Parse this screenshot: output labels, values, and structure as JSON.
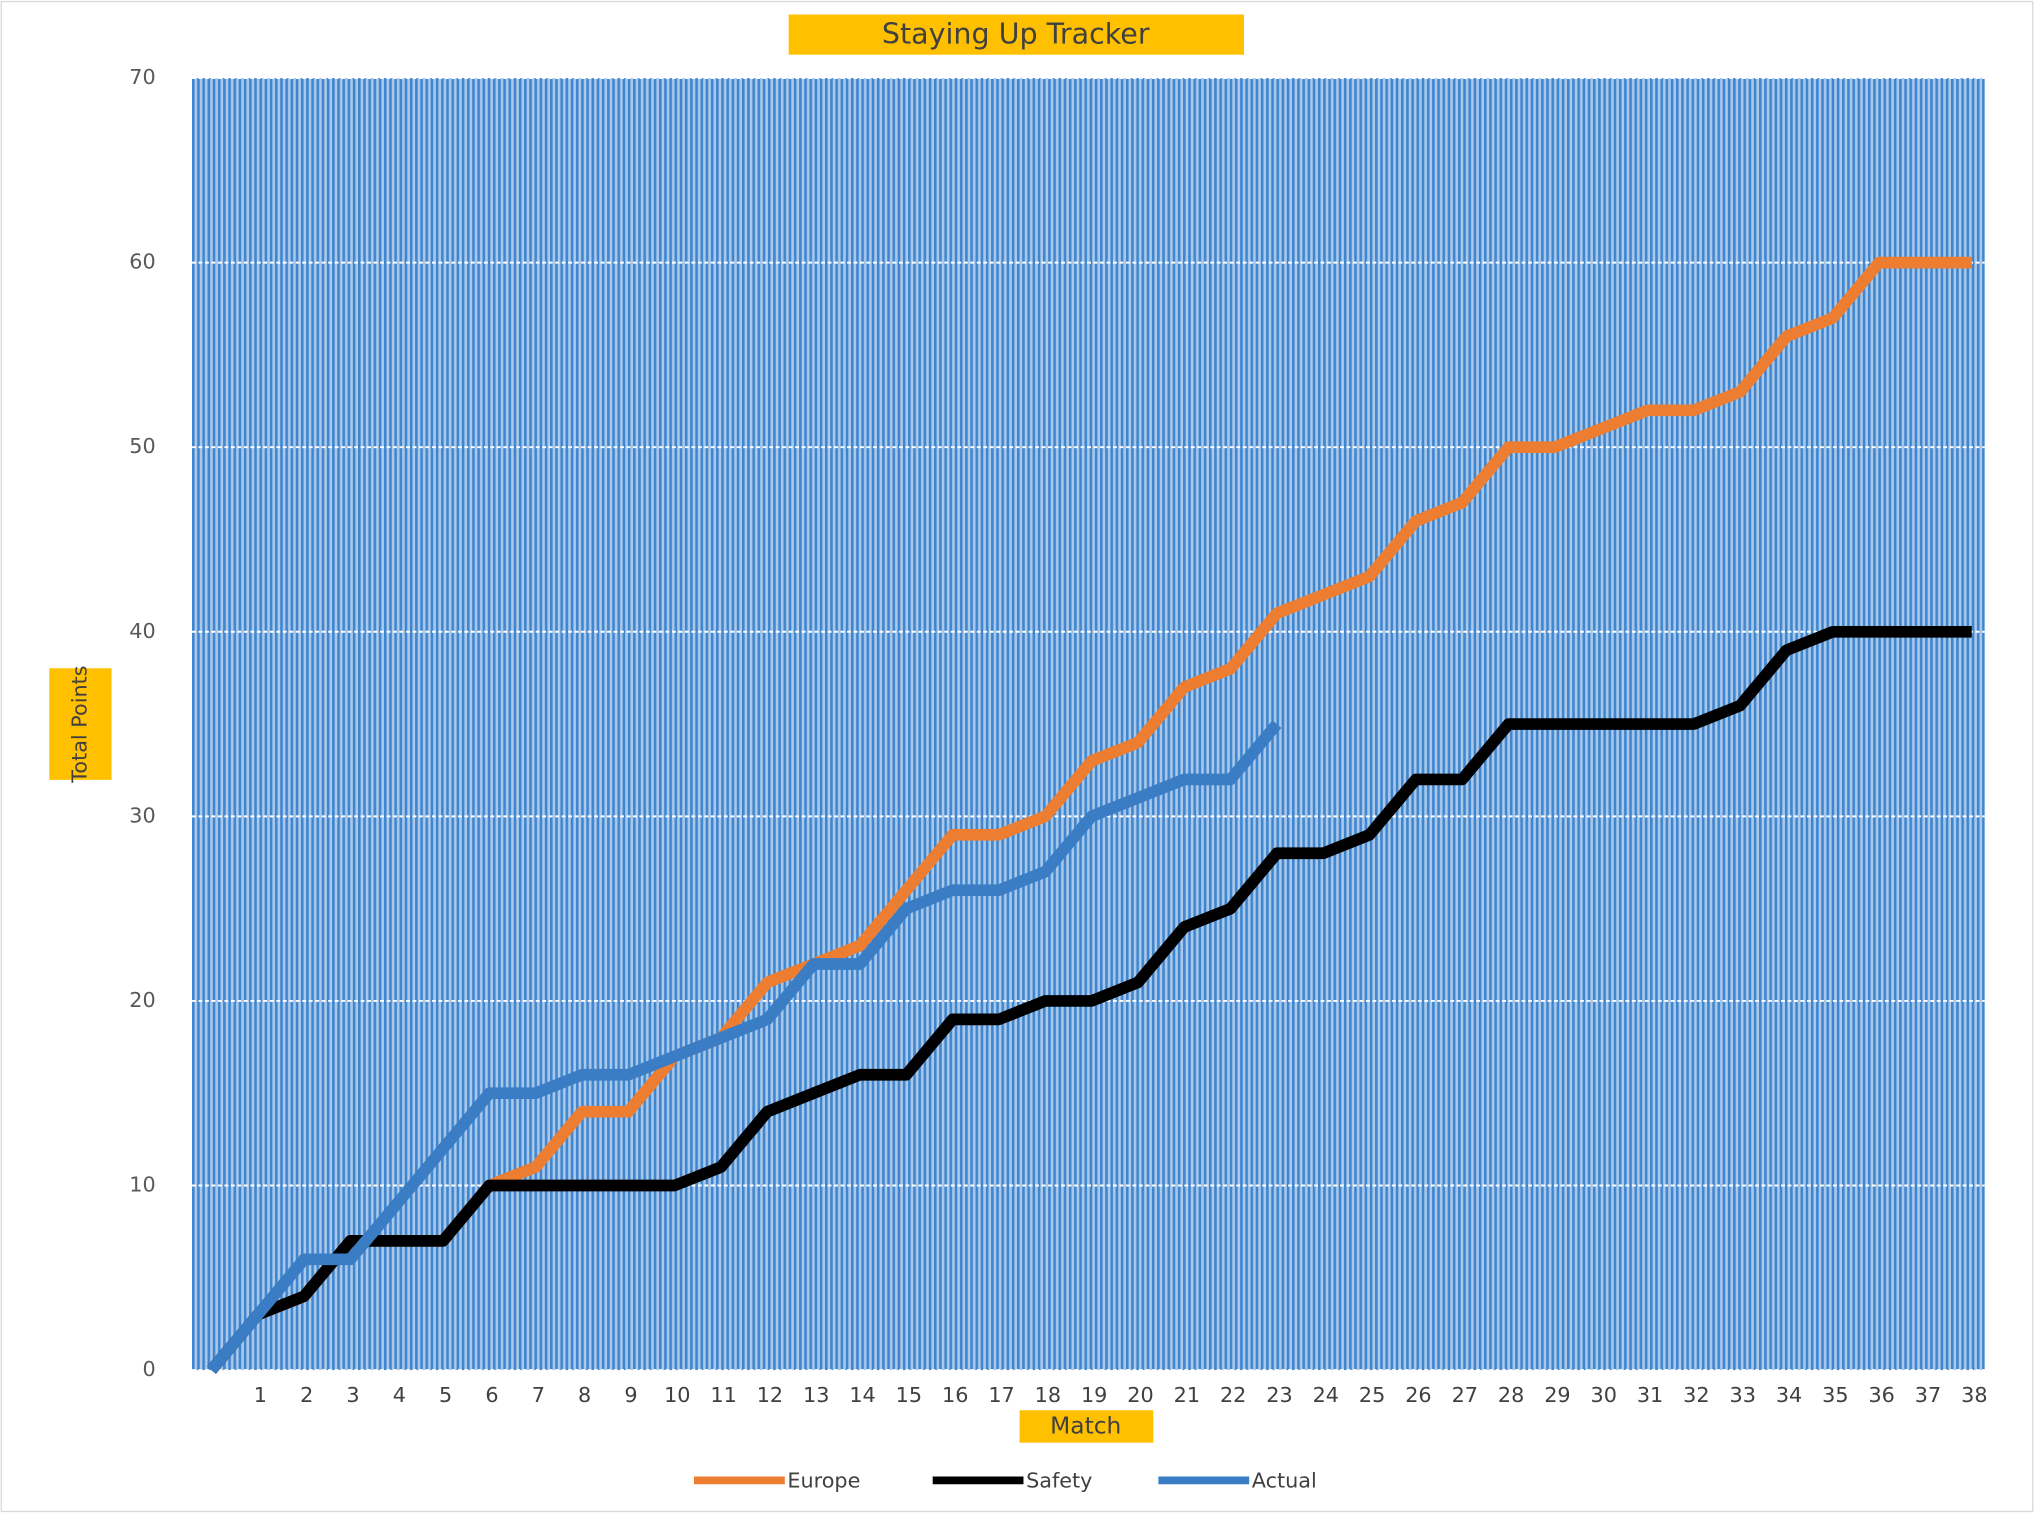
{
  "chart_data": {
    "type": "line",
    "title": "Staying Up Tracker",
    "x_label": "Match",
    "y_label": "Total Points",
    "categories": [
      null,
      "1",
      "2",
      "3",
      "4",
      "5",
      "6",
      "7",
      "8",
      "9",
      "10",
      "11",
      "12",
      "13",
      "14",
      "15",
      "16",
      "17",
      "18",
      "19",
      "20",
      "21",
      "22",
      "23",
      "24",
      "25",
      "26",
      "27",
      "28",
      "29",
      "30",
      "31",
      "32",
      "33",
      "34",
      "35",
      "36",
      "37",
      "38"
    ],
    "series": [
      {
        "name": "Europe",
        "color": "#ed7d31",
        "values": [
          0,
          3,
          4,
          7,
          7,
          7,
          10,
          11,
          14,
          14,
          17,
          18,
          21,
          22,
          23,
          26,
          29,
          29,
          30,
          33,
          34,
          37,
          38,
          41,
          42,
          43,
          46,
          47,
          50,
          50,
          51,
          52,
          52,
          53,
          56,
          57,
          60,
          60,
          60
        ]
      },
      {
        "name": "Safety",
        "color": "#000000",
        "values": [
          0,
          3,
          4,
          7,
          7,
          7,
          10,
          10,
          10,
          10,
          10,
          11,
          14,
          15,
          16,
          16,
          19,
          19,
          20,
          20,
          21,
          24,
          25,
          28,
          28,
          29,
          32,
          32,
          35,
          35,
          35,
          35,
          35,
          36,
          39,
          40,
          40,
          40,
          40
        ]
      },
      {
        "name": "Actual",
        "color": "#3a7dc4",
        "values": [
          0,
          3,
          6,
          6,
          9,
          12,
          15,
          15,
          16,
          16,
          17,
          18,
          19,
          22,
          22,
          25,
          26,
          26,
          27,
          30,
          31,
          32,
          32,
          35,
          null,
          null,
          null,
          null,
          null,
          null,
          null,
          null,
          null,
          null,
          null,
          null,
          null,
          null,
          null
        ]
      }
    ],
    "ylim": [
      0,
      70
    ],
    "yticks": [
      0,
      10,
      20,
      30,
      40,
      50,
      60,
      70
    ],
    "grid": true,
    "legend": "bottom"
  }
}
